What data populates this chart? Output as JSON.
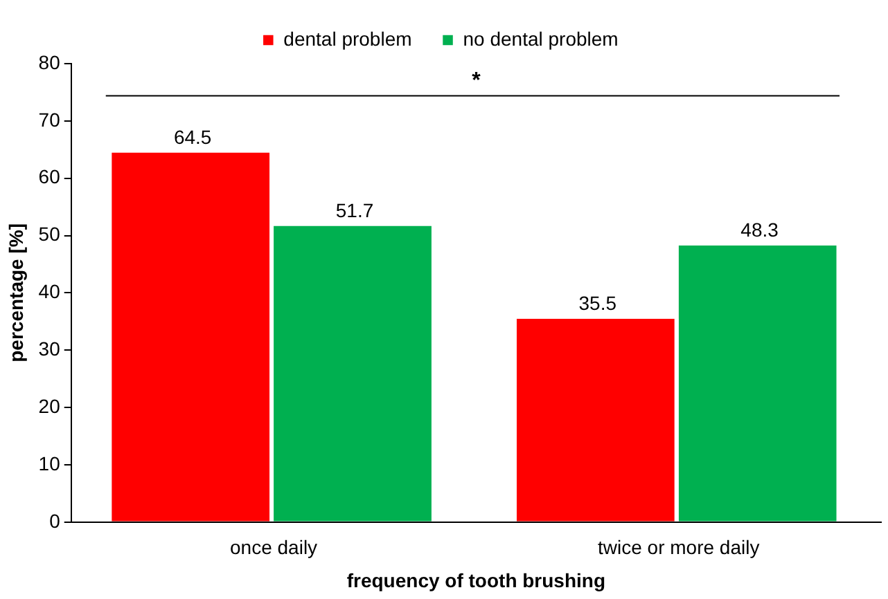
{
  "chart_data": {
    "type": "bar",
    "xlabel": "frequency of tooth brushing",
    "ylabel": "percentage [%]",
    "categories": [
      "once daily",
      "twice or more daily"
    ],
    "series": [
      {
        "name": "dental problem",
        "color": "#ff0000",
        "values": [
          64.5,
          35.5
        ]
      },
      {
        "name": "no dental problem",
        "color": "#00b050",
        "values": [
          51.7,
          48.3
        ]
      }
    ],
    "ylim": [
      0,
      80
    ],
    "yticks": [
      0,
      10,
      20,
      30,
      40,
      50,
      60,
      70,
      80
    ],
    "grid": false,
    "legend": "top",
    "data_labels": true,
    "ref_lines": [
      {
        "axis": "y",
        "value": 74.5,
        "label": "*",
        "color": "#000000"
      }
    ]
  }
}
